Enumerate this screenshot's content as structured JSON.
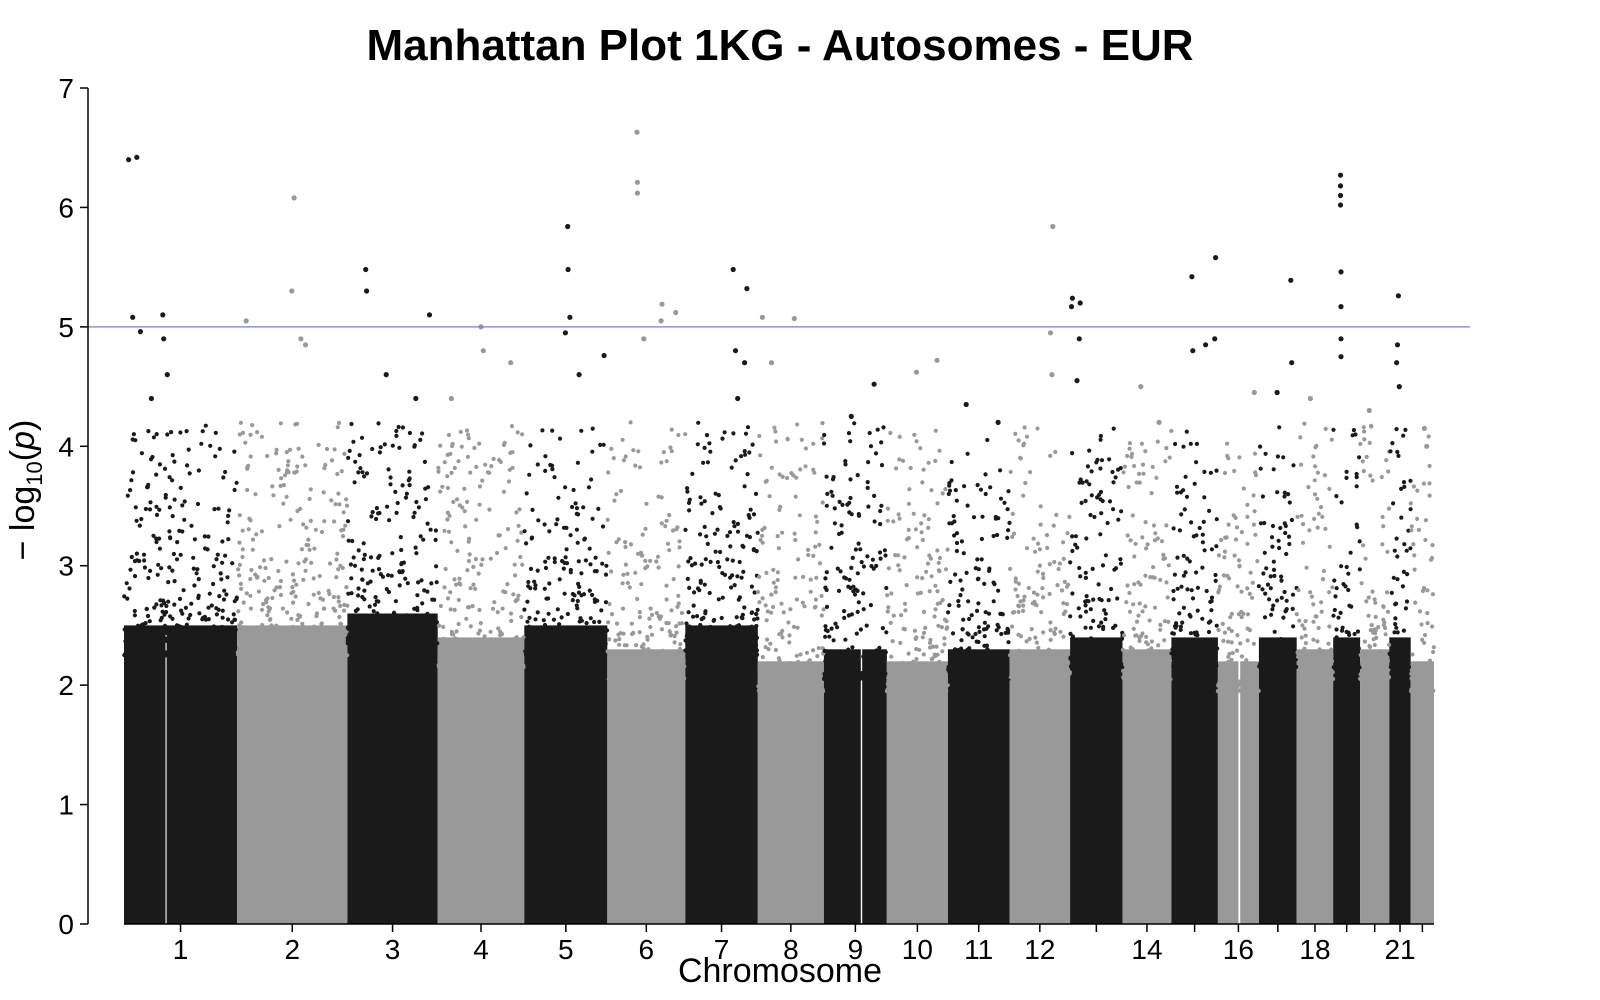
{
  "chart_data": {
    "type": "scatter",
    "title": "Manhattan Plot 1KG - Autosomes - EUR",
    "xlabel": "Chromosome",
    "ylabel_parts": [
      "− log",
      "10",
      "(",
      "p",
      ")"
    ],
    "ylim": [
      0,
      7
    ],
    "y_ticks": [
      "0",
      "1",
      "2",
      "3",
      "4",
      "5",
      "6",
      "7"
    ],
    "threshold": {
      "value": 5,
      "color": "#7a7ad6"
    },
    "colors": {
      "odd": "#1a1a1a",
      "even": "#999999"
    },
    "chromosomes": [
      {
        "chr": 1,
        "label": "1",
        "start": 0,
        "end": 248,
        "band_top": 2.5,
        "peaks": [
          [
            10,
            6.4
          ],
          [
            19,
            5.08
          ],
          [
            28,
            6.42
          ],
          [
            36,
            4.96
          ],
          [
            85,
            5.1
          ],
          [
            87,
            4.9
          ],
          [
            95,
            4.6
          ],
          [
            60,
            4.4
          ]
        ]
      },
      {
        "chr": 2,
        "label": "2",
        "start": 248,
        "end": 490,
        "band_top": 2.5,
        "peaks": [
          [
            20,
            5.05
          ],
          [
            125,
            6.08
          ],
          [
            120,
            5.3
          ],
          [
            140,
            4.9
          ],
          [
            150,
            4.85
          ]
        ]
      },
      {
        "chr": 3,
        "label": "3",
        "start": 490,
        "end": 688,
        "band_top": 2.6,
        "peaks": [
          [
            40,
            5.48
          ],
          [
            42,
            5.3
          ],
          [
            85,
            4.6
          ],
          [
            180,
            5.1
          ],
          [
            150,
            4.4
          ]
        ]
      },
      {
        "chr": 4,
        "label": "4",
        "start": 688,
        "end": 878,
        "band_top": 2.4,
        "peaks": [
          [
            95,
            5.0
          ],
          [
            100,
            4.8
          ],
          [
            30,
            4.4
          ],
          [
            160,
            4.7
          ]
        ]
      },
      {
        "chr": 5,
        "label": "5",
        "start": 878,
        "end": 1060,
        "band_top": 2.5,
        "peaks": [
          [
            95,
            5.84
          ],
          [
            96,
            5.48
          ],
          [
            100,
            5.08
          ],
          [
            90,
            4.95
          ],
          [
            120,
            4.6
          ],
          [
            175,
            4.76
          ]
        ]
      },
      {
        "chr": 6,
        "label": "6",
        "start": 1060,
        "end": 1231,
        "band_top": 2.3,
        "peaks": [
          [
            65,
            6.63
          ],
          [
            66,
            6.21
          ],
          [
            66,
            6.12
          ],
          [
            120,
            5.19
          ],
          [
            118,
            5.05
          ],
          [
            150,
            5.12
          ],
          [
            80,
            4.9
          ]
        ]
      },
      {
        "chr": 7,
        "label": "7",
        "start": 1231,
        "end": 1390,
        "band_top": 2.5,
        "peaks": [
          [
            105,
            5.48
          ],
          [
            135,
            5.32
          ],
          [
            110,
            4.8
          ],
          [
            130,
            4.7
          ],
          [
            115,
            4.4
          ]
        ]
      },
      {
        "chr": 8,
        "label": "8",
        "start": 1390,
        "end": 1535,
        "band_top": 2.2,
        "peaks": [
          [
            10,
            5.08
          ],
          [
            80,
            5.07
          ],
          [
            30,
            4.7
          ]
        ]
      },
      {
        "chr": 9,
        "label": "9",
        "start": 1535,
        "end": 1673,
        "band_top": 2.3,
        "peaks": [
          [
            110,
            4.52
          ],
          [
            60,
            4.25
          ]
        ]
      },
      {
        "chr": 10,
        "label": "10",
        "start": 1673,
        "end": 1807,
        "band_top": 2.2,
        "peaks": [
          [
            65,
            4.62
          ],
          [
            110,
            4.72
          ]
        ]
      },
      {
        "chr": 11,
        "label": "11",
        "start": 1807,
        "end": 1942,
        "band_top": 2.3,
        "peaks": [
          [
            40,
            4.35
          ],
          [
            110,
            4.2
          ]
        ]
      },
      {
        "chr": 12,
        "label": "12",
        "start": 1942,
        "end": 2075,
        "band_top": 2.3,
        "peaks": [
          [
            95,
            5.84
          ],
          [
            90,
            4.95
          ],
          [
            93,
            4.6
          ]
        ]
      },
      {
        "chr": 13,
        "label": "",
        "start": 2075,
        "end": 2190,
        "band_top": 2.4,
        "peaks": [
          [
            5,
            5.24
          ],
          [
            3,
            5.17
          ],
          [
            22,
            5.2
          ],
          [
            20,
            4.9
          ],
          [
            15,
            4.55
          ]
        ]
      },
      {
        "chr": 14,
        "label": "14",
        "start": 2190,
        "end": 2297,
        "band_top": 2.3,
        "peaks": [
          [
            40,
            4.5
          ],
          [
            80,
            4.2
          ]
        ]
      },
      {
        "chr": 15,
        "label": "",
        "start": 2297,
        "end": 2399,
        "band_top": 2.4,
        "peaks": [
          [
            45,
            5.42
          ],
          [
            47,
            4.8
          ],
          [
            75,
            4.85
          ],
          [
            97,
            5.58
          ],
          [
            95,
            4.9
          ]
        ]
      },
      {
        "chr": 16,
        "label": "16",
        "start": 2399,
        "end": 2489,
        "band_top": 2.2,
        "peaks": [
          [
            80,
            4.45
          ]
        ]
      },
      {
        "chr": 17,
        "label": "",
        "start": 2489,
        "end": 2572,
        "band_top": 2.4,
        "peaks": [
          [
            70,
            5.39
          ],
          [
            72,
            4.7
          ],
          [
            40,
            4.45
          ]
        ]
      },
      {
        "chr": 18,
        "label": "18",
        "start": 2572,
        "end": 2652,
        "band_top": 2.3,
        "peaks": [
          [
            30,
            4.4
          ]
        ]
      },
      {
        "chr": 19,
        "label": "",
        "start": 2652,
        "end": 2711,
        "band_top": 2.4,
        "peaks": [
          [
            16,
            6.27
          ],
          [
            16,
            6.18
          ],
          [
            16,
            6.1
          ],
          [
            16,
            6.02
          ],
          [
            17,
            5.46
          ],
          [
            17,
            5.17
          ],
          [
            17,
            4.9
          ],
          [
            17,
            4.75
          ]
        ]
      },
      {
        "chr": 20,
        "label": "",
        "start": 2711,
        "end": 2775,
        "band_top": 2.3,
        "peaks": [
          [
            20,
            4.3
          ]
        ]
      },
      {
        "chr": 21,
        "label": "21",
        "start": 2775,
        "end": 2822,
        "band_top": 2.4,
        "peaks": [
          [
            20,
            5.26
          ],
          [
            18,
            4.85
          ],
          [
            16,
            4.7
          ],
          [
            22,
            4.5
          ]
        ]
      },
      {
        "chr": 22,
        "label": "",
        "start": 2822,
        "end": 2873,
        "band_top": 2.2,
        "peaks": [
          [
            30,
            4.15
          ],
          [
            35,
            4.0
          ]
        ]
      }
    ]
  }
}
